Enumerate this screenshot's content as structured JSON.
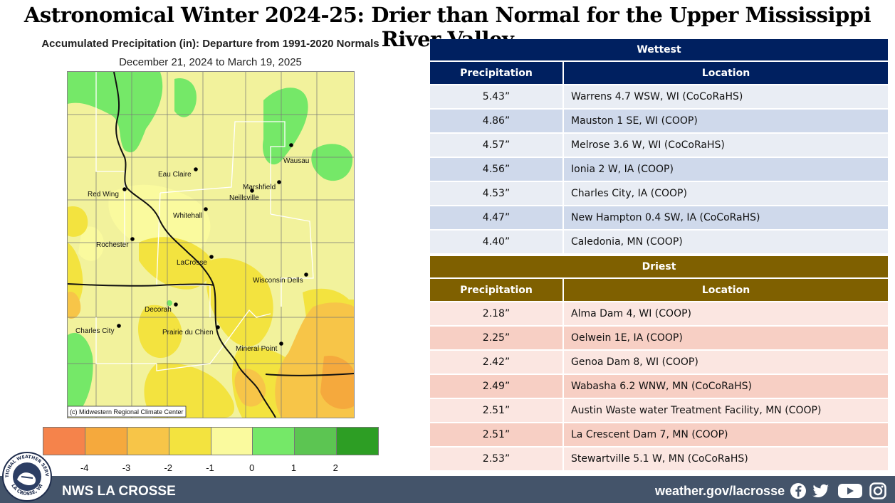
{
  "title": "Astronomical Winter 2024-25: Drier than Normal for the Upper Mississippi River Valley",
  "map": {
    "title": "Accumulated Precipitation (in): Departure from 1991-2020 Normals",
    "date_range": "December 21, 2024 to March 19, 2025",
    "credit": "(c) Midwestern Regional Climate Center",
    "cities": [
      "Red Wing",
      "Eau Claire",
      "Marshfield",
      "Wausau",
      "Neillsville",
      "Whitehall",
      "Rochester",
      "LaCrosse",
      "Wisconsin Dells",
      "Decorah",
      "Charles City",
      "Prairie du Chien",
      "Mineral Point"
    ]
  },
  "legend": {
    "colors": [
      "#f5834b",
      "#f5a93d",
      "#f7c548",
      "#f3e33f",
      "#fafa9e",
      "#75e868",
      "#5cc552",
      "#2d9e24"
    ],
    "ticks": [
      "-4",
      "-3",
      "-2",
      "-1",
      "0",
      "1",
      "2"
    ]
  },
  "wettest": {
    "header": "Wettest",
    "col_precip": "Precipitation",
    "col_location": "Location",
    "header_color": "#002060",
    "rows": [
      {
        "precip": "5.43”",
        "location": "Warrens 4.7 WSW, WI (CoCoRaHS)"
      },
      {
        "precip": "4.86”",
        "location": "Mauston 1 SE, WI (COOP)"
      },
      {
        "precip": "4.57”",
        "location": "Melrose 3.6 W, WI (CoCoRaHS)"
      },
      {
        "precip": "4.56”",
        "location": "Ionia 2 W, IA (COOP)"
      },
      {
        "precip": "4.53”",
        "location": "Charles City, IA (COOP)"
      },
      {
        "precip": "4.47”",
        "location": "New Hampton 0.4 SW, IA (CoCoRaHS)"
      },
      {
        "precip": "4.40”",
        "location": "Caledonia, MN (COOP)"
      }
    ]
  },
  "driest": {
    "header": "Driest",
    "col_precip": "Precipitation",
    "col_location": "Location",
    "header_color": "#7f6000",
    "rows": [
      {
        "precip": "2.18”",
        "location": "Alma Dam 4, WI (COOP)"
      },
      {
        "precip": "2.25”",
        "location": "Oelwein 1E, IA (COOP)"
      },
      {
        "precip": "2.42”",
        "location": "Genoa Dam 8, WI (COOP)"
      },
      {
        "precip": "2.49”",
        "location": "Wabasha  6.2 WNW, MN (CoCoRaHS)"
      },
      {
        "precip": "2.51”",
        "location": "Austin Waste water Treatment Facility, MN (COOP)"
      },
      {
        "precip": "2.51”",
        "location": "La Crescent Dam 7, MN (COOP)"
      },
      {
        "precip": "2.53”",
        "location": "Stewartville 5.1 W, MN (CoCoRaHS)"
      }
    ]
  },
  "footer": {
    "office": "NWS LA CROSSE",
    "url": "weather.gov/lacrosse",
    "social_icons": [
      "facebook-icon",
      "twitter-icon",
      "youtube-icon",
      "instagram-icon"
    ],
    "logo_text_top": "NATIONAL WEATHER SERVICE",
    "logo_text_bottom": "LA CROSSE, WI"
  }
}
